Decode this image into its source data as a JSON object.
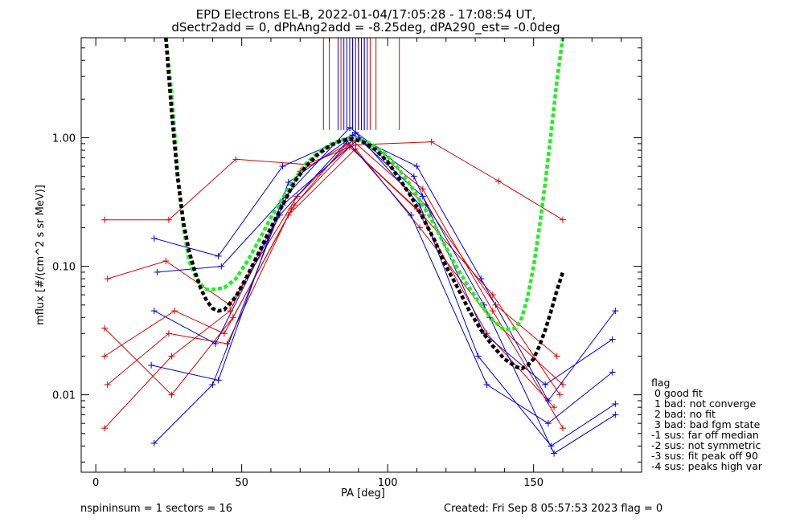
{
  "title": "EPD Electrons EL-B, 2022-01-04/17:05:28 - 17:08:54 UT,",
  "subtitle": "dSectr2add = 0, dPhAng2add = -8.25deg, dPA290_est=  -0.0deg",
  "footer": {
    "left": "nspininsum =  1  sectors = 16",
    "right": "Created: Fri Sep  8 05:57:53 2023   flag = 0"
  },
  "legend": {
    "title": "flag",
    "items": [
      " 0 good fit",
      " 1 bad: not converge",
      " 2 bad: no fit",
      " 3 bad: bad fgm state",
      "-1 sus: far off median",
      "-2 sus: not symmetric",
      "-3 sus: fit peak off 90",
      "-4 sus: peaks high var"
    ]
  },
  "colors": {
    "red": "#dd0000",
    "blue": "#0000dd",
    "green": "#22ee22",
    "black": "#000000"
  },
  "chart_data": {
    "type": "line",
    "title": "EPD Electrons EL-B, 2022-01-04/17:05:28 - 17:08:54 UT,",
    "xlabel": "PA [deg]",
    "ylabel": "mflux [#/(cm^2 s sr MeV)]",
    "xlim": [
      -5,
      187
    ],
    "ylim": [
      0.0025,
      6
    ],
    "yscale": "log",
    "xticks": [
      0,
      50,
      100,
      150
    ],
    "xtick_labels": [
      "0",
      "50",
      "100",
      "150"
    ],
    "yticks": [
      0.01,
      0.1,
      1.0
    ],
    "ytick_labels": [
      "0.01",
      "0.10",
      "1.00"
    ],
    "grid": false,
    "legend_position": "right",
    "series": [
      {
        "color": "red",
        "x": [
          3,
          25,
          48,
          72,
          89,
          115,
          138,
          160
        ],
        "y": [
          0.23,
          0.23,
          0.68,
          0.62,
          0.88,
          0.93,
          0.46,
          0.23
        ]
      },
      {
        "color": "red",
        "x": [
          3,
          26,
          47,
          68,
          87,
          112,
          136,
          159
        ],
        "y": [
          0.033,
          0.01,
          0.04,
          0.3,
          0.85,
          0.25,
          0.06,
          0.01
        ]
      },
      {
        "color": "red",
        "x": [
          4,
          24,
          46,
          69,
          88,
          113,
          137,
          158
        ],
        "y": [
          0.08,
          0.11,
          0.05,
          0.35,
          0.95,
          0.3,
          0.05,
          0.02
        ]
      },
      {
        "color": "red",
        "x": [
          3,
          27,
          44,
          66,
          89,
          111,
          135,
          160
        ],
        "y": [
          0.02,
          0.045,
          0.03,
          0.25,
          0.82,
          0.2,
          0.04,
          0.012
        ]
      },
      {
        "color": "red",
        "x": [
          4,
          25,
          45,
          67,
          86,
          110,
          134,
          157
        ],
        "y": [
          0.012,
          0.03,
          0.025,
          0.28,
          0.9,
          0.28,
          0.03,
          0.008
        ]
      },
      {
        "color": "red",
        "x": [
          3,
          26,
          46,
          70,
          90,
          112,
          136,
          160
        ],
        "y": [
          0.0055,
          0.02,
          0.045,
          0.55,
          1.0,
          0.4,
          0.045,
          0.0055
        ]
      },
      {
        "color": "blue",
        "x": [
          20,
          42,
          64,
          88,
          110,
          132,
          155,
          178
        ],
        "y": [
          0.165,
          0.12,
          0.6,
          1.05,
          0.6,
          0.08,
          0.009,
          0.045
        ]
      },
      {
        "color": "blue",
        "x": [
          21,
          43,
          65,
          87,
          109,
          133,
          154,
          177
        ],
        "y": [
          0.09,
          0.1,
          0.35,
          1.2,
          0.5,
          0.03,
          0.012,
          0.027
        ]
      },
      {
        "color": "blue",
        "x": [
          20,
          41,
          63,
          89,
          111,
          131,
          156,
          178
        ],
        "y": [
          0.045,
          0.025,
          0.25,
          1.1,
          0.3,
          0.02,
          0.004,
          0.0085
        ]
      },
      {
        "color": "blue",
        "x": [
          19,
          42,
          66,
          86,
          108,
          134,
          155,
          177
        ],
        "y": [
          0.017,
          0.013,
          0.45,
          0.95,
          0.25,
          0.012,
          0.006,
          0.015
        ]
      },
      {
        "color": "blue",
        "x": [
          20,
          40,
          64,
          90,
          112,
          133,
          157,
          178
        ],
        "y": [
          0.0042,
          0.012,
          0.3,
          0.98,
          0.35,
          0.05,
          0.0035,
          0.007
        ]
      }
    ],
    "spikes": {
      "color_red_x": [
        78,
        80,
        84,
        88,
        90,
        92,
        94,
        96,
        104
      ],
      "color_blue_x": [
        83,
        85,
        86,
        87,
        88,
        89,
        90,
        91,
        92,
        93
      ],
      "y_bottom": 1.15
    },
    "fits": [
      {
        "color": "green",
        "x": [
          24,
          26,
          28,
          30,
          32,
          34,
          36,
          38,
          40,
          44,
          48,
          52,
          56,
          60,
          64,
          68,
          72,
          76,
          80,
          84,
          88,
          92,
          96,
          100,
          104,
          108,
          112,
          116,
          120,
          124,
          128,
          132,
          136,
          140,
          144,
          146,
          148,
          150,
          152,
          154,
          156,
          158,
          160
        ],
        "y": [
          6,
          2.2,
          0.55,
          0.2,
          0.11,
          0.085,
          0.072,
          0.066,
          0.066,
          0.068,
          0.08,
          0.11,
          0.16,
          0.24,
          0.34,
          0.47,
          0.63,
          0.76,
          0.88,
          0.96,
          0.99,
          0.95,
          0.85,
          0.72,
          0.56,
          0.42,
          0.3,
          0.21,
          0.14,
          0.095,
          0.068,
          0.05,
          0.038,
          0.032,
          0.033,
          0.04,
          0.058,
          0.1,
          0.2,
          0.45,
          1.1,
          2.8,
          6
        ]
      },
      {
        "color": "black",
        "x": [
          24,
          26,
          28,
          30,
          32,
          34,
          36,
          38,
          40,
          42,
          44,
          48,
          52,
          56,
          60,
          64,
          68,
          72,
          76,
          80,
          84,
          88,
          92,
          96,
          100,
          104,
          108,
          112,
          116,
          120,
          124,
          128,
          132,
          136,
          140,
          144,
          146,
          148,
          150,
          152,
          154,
          156,
          158,
          160
        ],
        "y": [
          6,
          1.6,
          0.5,
          0.22,
          0.13,
          0.09,
          0.067,
          0.054,
          0.047,
          0.045,
          0.046,
          0.058,
          0.085,
          0.13,
          0.2,
          0.3,
          0.45,
          0.6,
          0.74,
          0.86,
          0.95,
          0.98,
          0.92,
          0.8,
          0.65,
          0.48,
          0.35,
          0.24,
          0.16,
          0.1,
          0.068,
          0.045,
          0.032,
          0.024,
          0.019,
          0.0165,
          0.016,
          0.017,
          0.019,
          0.024,
          0.032,
          0.045,
          0.065,
          0.09
        ]
      }
    ]
  }
}
